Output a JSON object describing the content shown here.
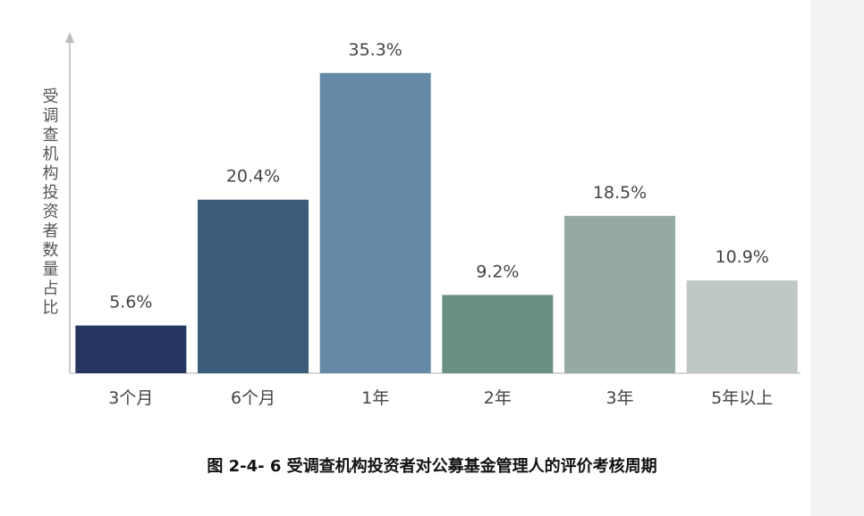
{
  "chart_data": {
    "type": "bar",
    "title": "图 2-4- 6  受调查机构投资者对公募基金管理人的评价考核周期",
    "y_label": "受调查机构投资者数量占比",
    "categories": [
      "3个月",
      "6个月",
      "1年",
      "2年",
      "3年",
      "5年以上"
    ],
    "values": [
      5.6,
      20.4,
      35.3,
      9.2,
      18.5,
      10.9
    ],
    "value_labels": [
      "5.6%",
      "20.4%",
      "35.3%",
      "9.2%",
      "18.5%",
      "10.9%"
    ],
    "colors": [
      "#253660",
      "#3b5d7b",
      "#6689a8",
      "#6b9082",
      "#96aaa5",
      "#bfc8c5"
    ],
    "ylim": [
      0,
      40
    ]
  }
}
